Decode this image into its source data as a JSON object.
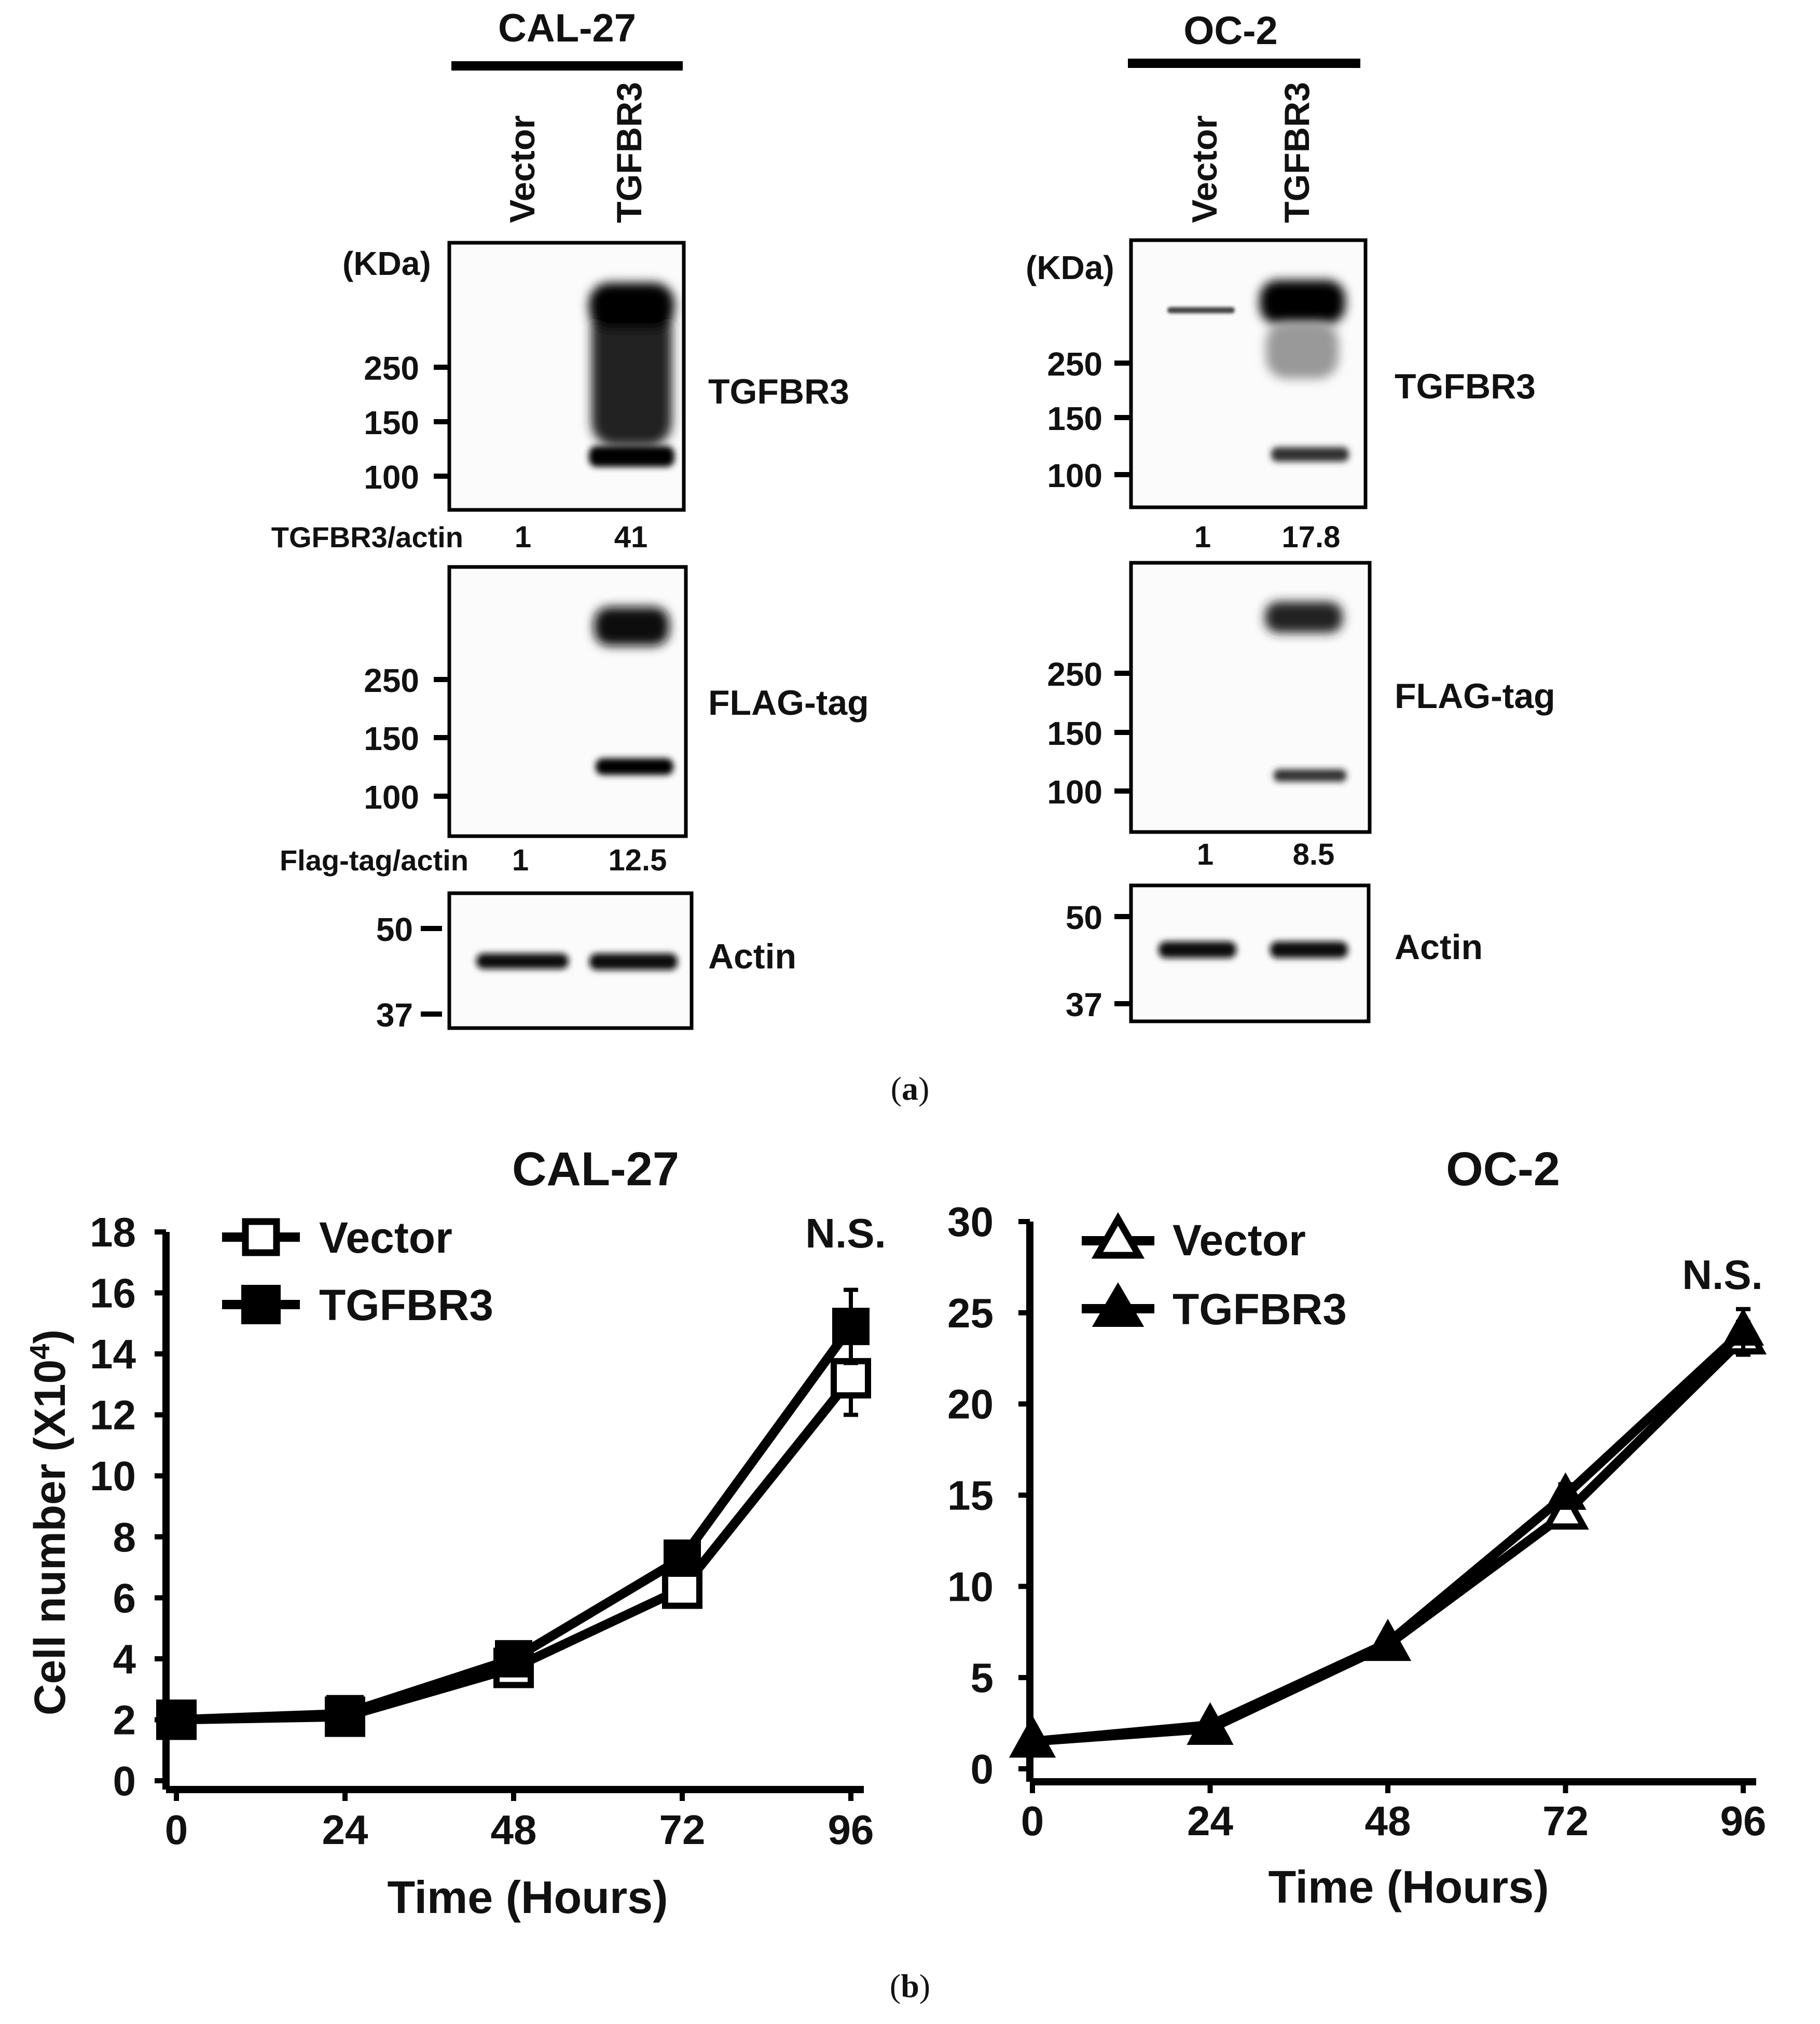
{
  "panel_a": {
    "caption_open": "(",
    "caption_letter": "a",
    "caption_close": ")",
    "kda_label": "(KDa)",
    "blots": [
      {
        "cell_line": "CAL-27",
        "lanes": [
          "Vector",
          "TGFBR3"
        ],
        "tgfbr3": {
          "label": "TGFBR3",
          "markers": [
            "250",
            "150",
            "100"
          ]
        },
        "ratio_tgfbr3": {
          "label": "TGFBR3/actin",
          "values": [
            "1",
            "41"
          ]
        },
        "flag": {
          "label": "FLAG-tag",
          "markers": [
            "250",
            "150",
            "100"
          ]
        },
        "ratio_flag": {
          "label": "Flag-tag/actin",
          "values": [
            "1",
            "12.5"
          ]
        },
        "actin": {
          "label": "Actin",
          "markers": [
            "50",
            "37"
          ]
        }
      },
      {
        "cell_line": "OC-2",
        "lanes": [
          "Vector",
          "TGFBR3"
        ],
        "tgfbr3": {
          "label": "TGFBR3",
          "markers": [
            "250",
            "150",
            "100"
          ]
        },
        "ratio_tgfbr3": {
          "values": [
            "1",
            "17.8"
          ]
        },
        "flag": {
          "label": "FLAG-tag",
          "markers": [
            "250",
            "150",
            "100"
          ]
        },
        "ratio_flag": {
          "values": [
            "1",
            "8.5"
          ]
        },
        "actin": {
          "label": "Actin",
          "markers": [
            "50",
            "37"
          ]
        }
      }
    ]
  },
  "panel_b": {
    "caption_open": "(",
    "caption_letter": "b",
    "caption_close": ")"
  },
  "chart_data": [
    {
      "type": "line",
      "title": "CAL-27",
      "xlabel": "Time (Hours)",
      "ylabel_main": "Cell number (X10",
      "ylabel_sup": "4",
      "ylabel_close": ")",
      "x": [
        0,
        24,
        48,
        72,
        96
      ],
      "xlim": [
        0,
        96
      ],
      "ylim": [
        0,
        18
      ],
      "yticks": [
        0,
        2,
        4,
        6,
        8,
        10,
        12,
        14,
        16,
        18
      ],
      "series": [
        {
          "name": "Vector",
          "marker": "open-square",
          "values": [
            2.0,
            2.1,
            3.7,
            6.3,
            13.2
          ],
          "errors": [
            0.2,
            0.2,
            0.4,
            0.4,
            1.2
          ]
        },
        {
          "name": "TGFBR3",
          "marker": "filled-square",
          "values": [
            2.0,
            2.2,
            4.0,
            7.3,
            14.9
          ],
          "errors": [
            0.2,
            0.2,
            0.3,
            0.5,
            1.2
          ]
        }
      ],
      "annotation": "N.S."
    },
    {
      "type": "line",
      "title": "OC-2",
      "xlabel": "Time (Hours)",
      "x": [
        0,
        24,
        48,
        72,
        96
      ],
      "xlim": [
        0,
        96
      ],
      "ylim": [
        0,
        30
      ],
      "yticks": [
        0,
        5,
        10,
        15,
        20,
        25,
        30
      ],
      "series": [
        {
          "name": "Vector",
          "marker": "open-triangle",
          "values": [
            1.5,
            2.2,
            6.8,
            14.0,
            23.6
          ],
          "errors": [
            0.2,
            0.2,
            0.3,
            0.6,
            0.9
          ]
        },
        {
          "name": "TGFBR3",
          "marker": "filled-triangle",
          "values": [
            1.5,
            2.4,
            6.9,
            15.0,
            24.0
          ],
          "errors": [
            0.2,
            0.2,
            0.3,
            0.6,
            1.2
          ]
        }
      ],
      "annotation": "N.S."
    }
  ]
}
